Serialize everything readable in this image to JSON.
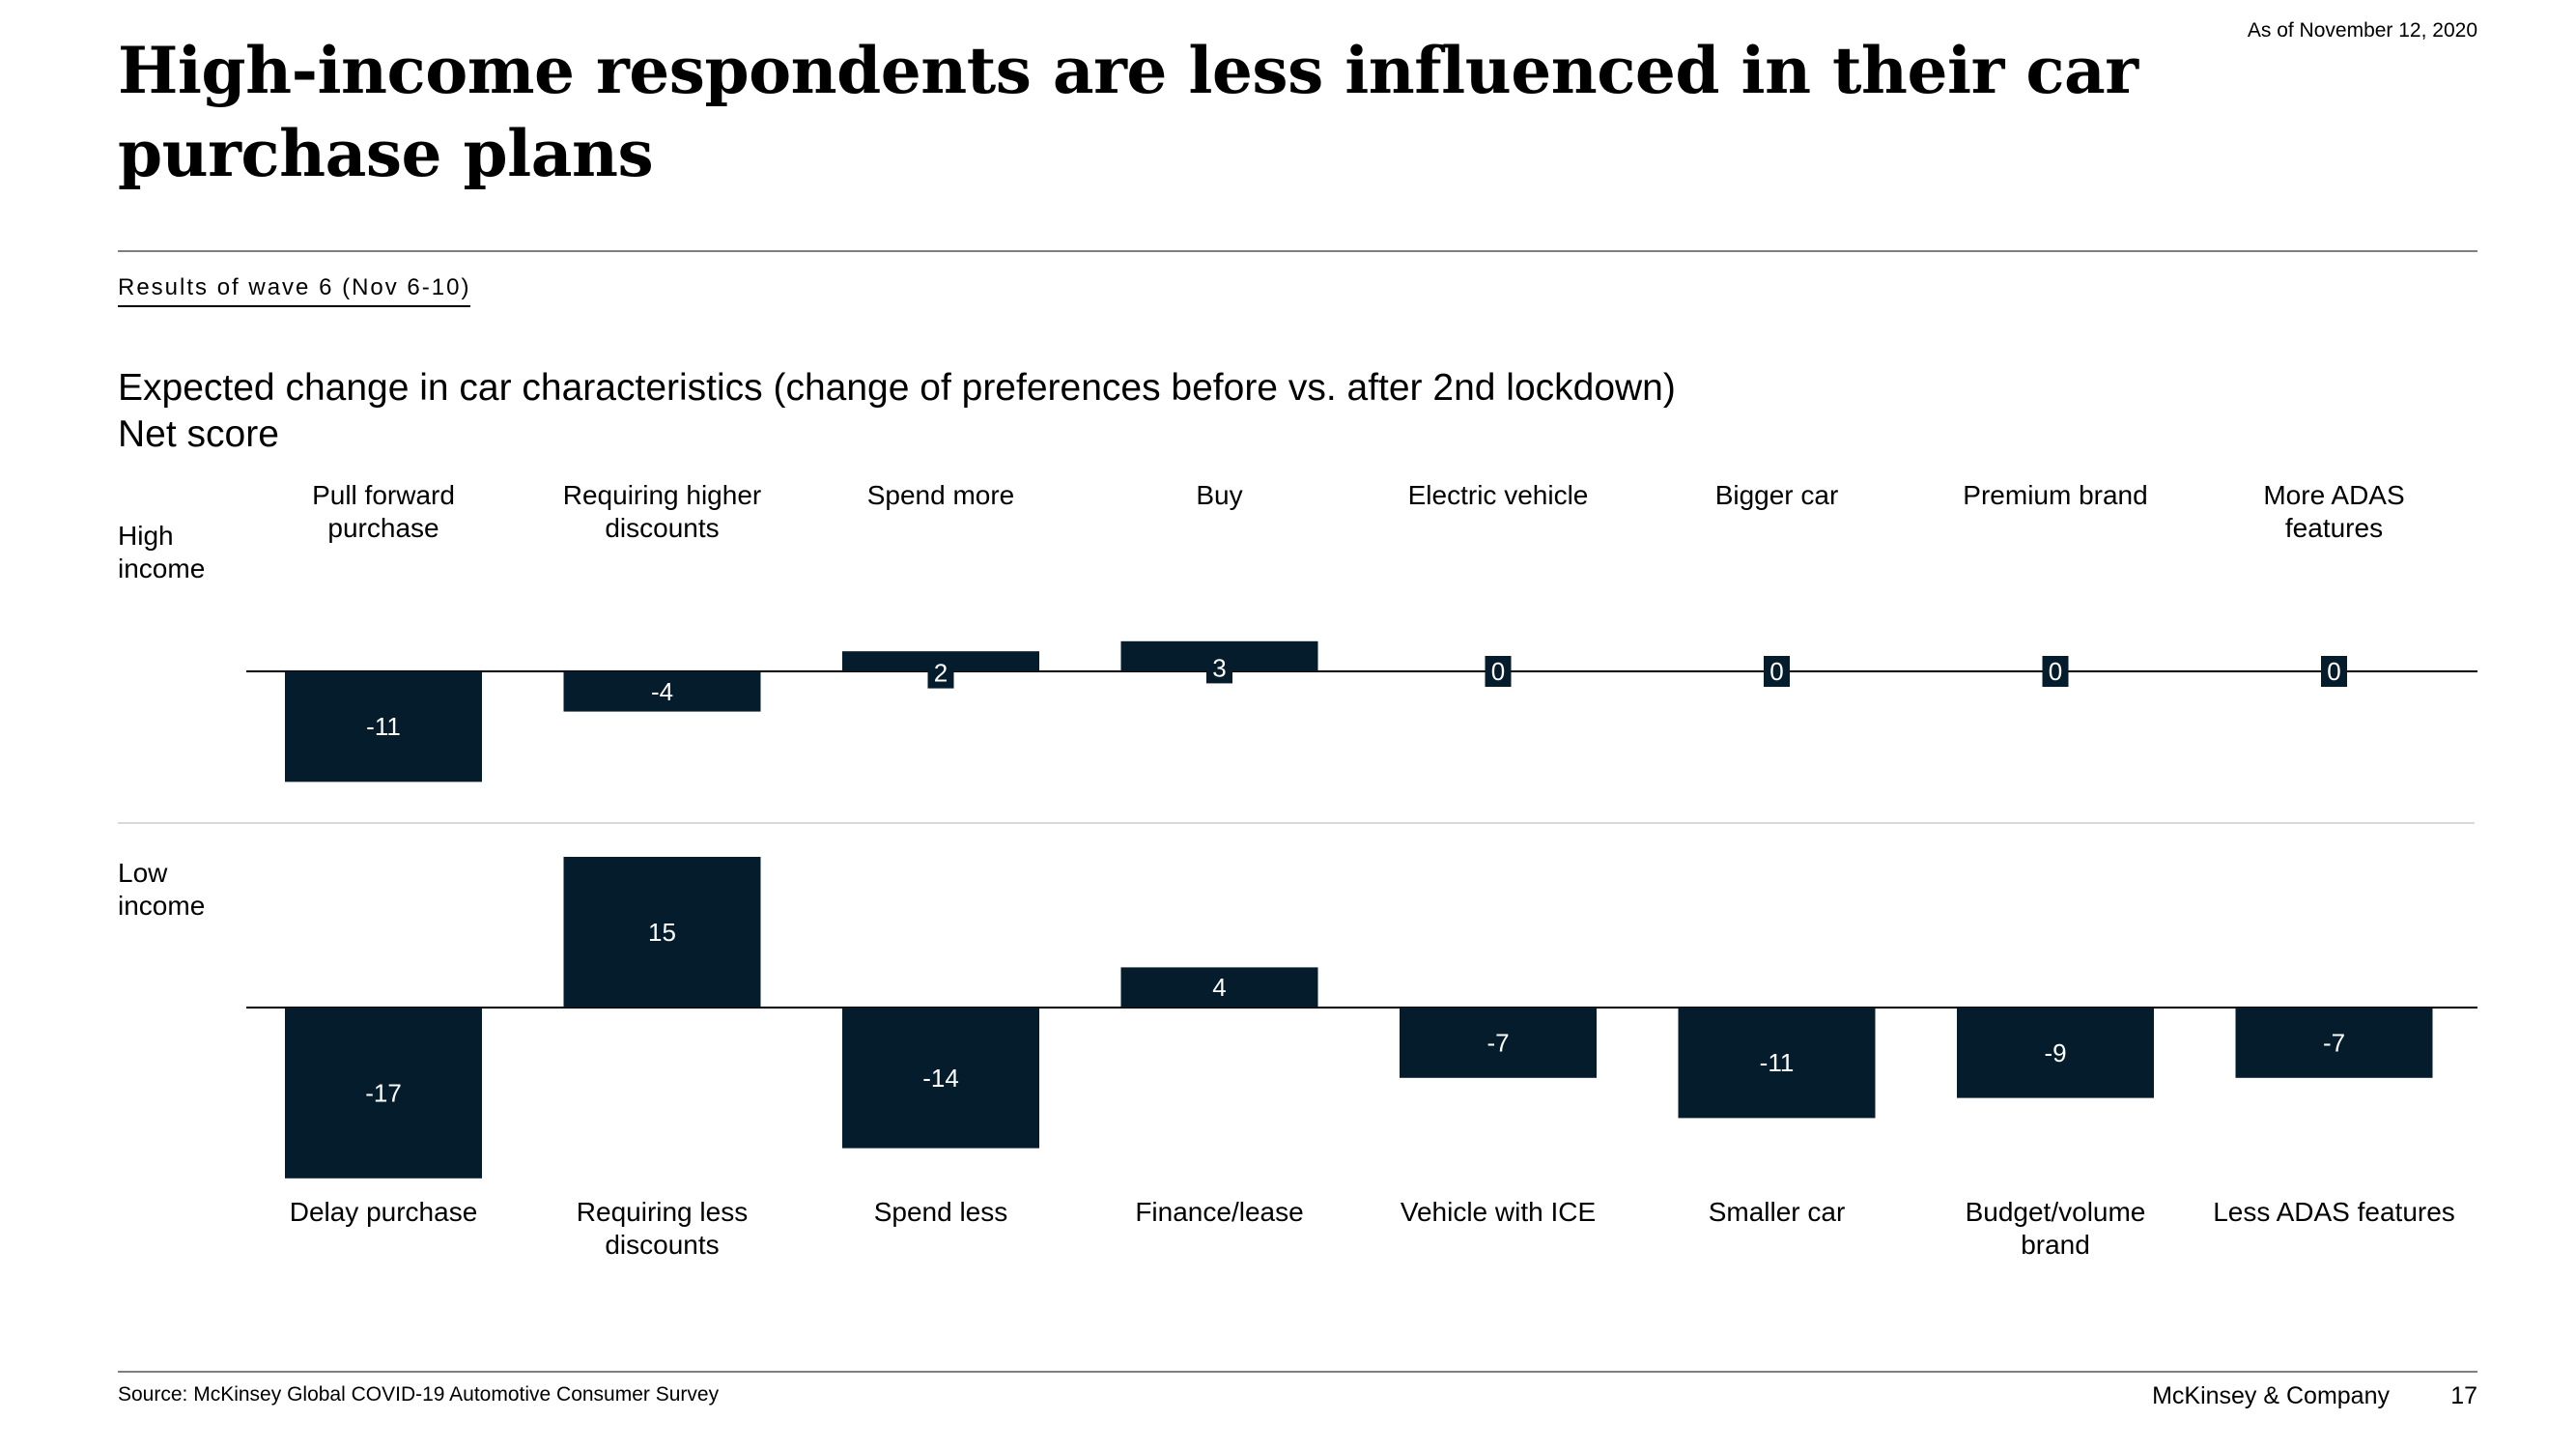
{
  "header": {
    "date": "As of November 12, 2020",
    "title": "High-income respondents are less influenced in their car purchase plans",
    "wave": "Results of wave 6 (Nov 6-10)",
    "subtitle_line1": "Expected change in car characteristics (change of preferences before vs. after 2nd lockdown)",
    "subtitle_line2": "Net score"
  },
  "row_labels": {
    "high": [
      "High",
      "income"
    ],
    "low": [
      "Low",
      "income"
    ]
  },
  "chart_data": {
    "type": "bar",
    "categories_top": [
      [
        "Pull forward",
        "purchase"
      ],
      [
        "Requiring higher",
        "discounts"
      ],
      [
        "Spend more"
      ],
      [
        "Buy"
      ],
      [
        "Electric vehicle"
      ],
      [
        "Bigger car"
      ],
      [
        "Premium brand"
      ],
      [
        "More ADAS",
        "features"
      ]
    ],
    "categories_bottom": [
      [
        "Delay purchase"
      ],
      [
        "Requiring less",
        "discounts"
      ],
      [
        "Spend less"
      ],
      [
        "Finance/lease"
      ],
      [
        "Vehicle with ICE"
      ],
      [
        "Smaller car"
      ],
      [
        "Budget/volume",
        "brand"
      ],
      [
        "Less ADAS features"
      ]
    ],
    "series": [
      {
        "name": "High income",
        "values": [
          -11,
          -4,
          2,
          3,
          0,
          0,
          0,
          0
        ]
      },
      {
        "name": "Low income",
        "values": [
          -17,
          15,
          -14,
          4,
          -7,
          -11,
          -9,
          -7
        ]
      }
    ],
    "bar_color": "#051c2c",
    "grid": false
  },
  "footer": {
    "source": "Source: McKinsey Global COVID-19 Automotive Consumer Survey",
    "brand": "McKinsey & Company",
    "page": "17"
  }
}
